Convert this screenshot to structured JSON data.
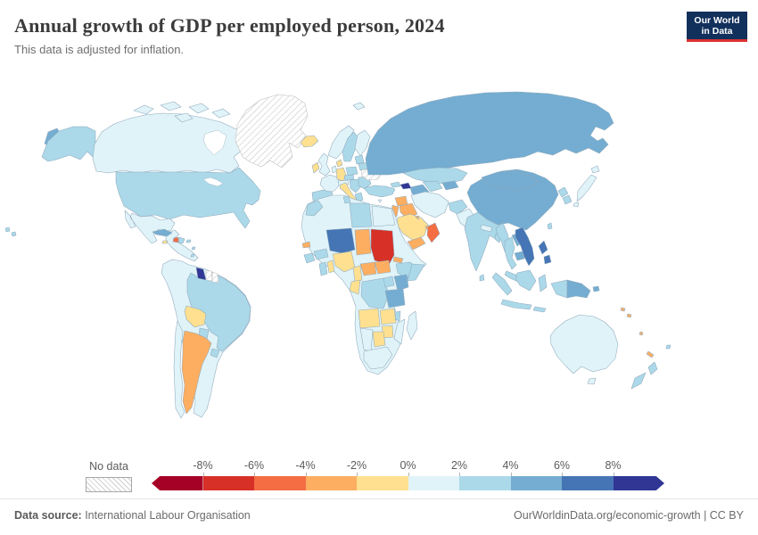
{
  "header": {
    "title": "Annual growth of GDP per employed person, 2024",
    "subtitle": "This data is adjusted for inflation.",
    "logo": {
      "line1": "Our World",
      "line2": "in Data",
      "bg_color": "#12305c",
      "accent_color": "#dc3231"
    }
  },
  "chart_data": {
    "type": "choropleth",
    "title": "Annual growth of GDP per employed person, 2024",
    "subtitle": "This data is adjusted for inflation.",
    "unit": "%",
    "legend": {
      "no_data_label": "No data",
      "tick_labels": [
        "-8%",
        "-6%",
        "-4%",
        "-2%",
        "0%",
        "2%",
        "4%",
        "6%",
        "8%"
      ],
      "bins": [
        {
          "id": "lt-8",
          "label": "< -8%",
          "color": "#a50026"
        },
        {
          "id": "-8--6",
          "label": "-8% to -6%",
          "color": "#d73027"
        },
        {
          "id": "-6--4",
          "label": "-6% to -4%",
          "color": "#f46d43"
        },
        {
          "id": "-4--2",
          "label": "-4% to -2%",
          "color": "#fdae61"
        },
        {
          "id": "-2-0",
          "label": "-2% to 0%",
          "color": "#fee090"
        },
        {
          "id": "0-2",
          "label": "0% to 2%",
          "color": "#e0f3f8"
        },
        {
          "id": "2-4",
          "label": "2% to 4%",
          "color": "#abd9e9"
        },
        {
          "id": "4-6",
          "label": "4% to 6%",
          "color": "#74add1"
        },
        {
          "id": "6-8",
          "label": "6% to 8%",
          "color": "#4575b4"
        },
        {
          "id": "gt8",
          "label": "> 8%",
          "color": "#313695"
        },
        {
          "id": "no-data",
          "label": "No data",
          "color": "hatch"
        }
      ]
    },
    "regions": {
      "chukotka": "4-6",
      "alaska": "2-4",
      "canada": "0-2",
      "arctic-islands": "0-2",
      "greenland": "no-data",
      "iceland": "-2-0",
      "usa": "2-4",
      "mexico": "0-2",
      "central-america": "0-2",
      "cuba": "4-6",
      "haiti": "-6--4",
      "dominican-republic": "2-4",
      "jamaica": "-2-0",
      "puerto-rico": "2-4",
      "hawaii": "2-4",
      "south-america-west": "0-2",
      "brazil": "2-4",
      "guyana": "gt8",
      "suriname": "no-data",
      "french-guiana": "no-data",
      "bolivia": "-2-0",
      "paraguay": "2-4",
      "uruguay": "2-4",
      "argentina": "-4--2",
      "chile": "0-2",
      "norway": "0-2",
      "sweden": "2-4",
      "finland": "0-2",
      "denmark": "-2-0",
      "uk": "0-2",
      "ireland": "-2-0",
      "france": "0-2",
      "iberia": "2-4",
      "germany": "-2-0",
      "benelux": "0-2",
      "poland": "2-4",
      "czech-slovakia": "2-4",
      "alpine": "0-2",
      "italy": "-2-0",
      "balkans": "2-4",
      "greece": "2-4",
      "romania-bulgaria": "2-4",
      "belarus": "2-4",
      "baltics": "2-4",
      "ukraine": "no-data",
      "turkey": "2-4",
      "cyprus": "0-2",
      "svalbard": "0-2",
      "russia": "4-6",
      "kazakhstan": "2-4",
      "turkmenistan": "4-6",
      "uzbekistan": "2-4",
      "kyrgyz-tajik": "4-6",
      "georgia": "2-4",
      "azerbaijan": "gt8",
      "syria": "-4--2",
      "iraq": "-4--2",
      "jordan-israel": "-4--2",
      "saudi-arabia": "-2-0",
      "kuwait": "-4--2",
      "yemen": "-4--2",
      "oman": "-6--4",
      "uae": "-4--2",
      "iran": "0-2",
      "afghanistan": "2-4",
      "pakistan": "0-2",
      "india": "2-4",
      "nepal": "0-2",
      "bangladesh": "2-4",
      "sri-lanka": "2-4",
      "china": "4-6",
      "mongolia": "4-6",
      "taiwan": "2-4",
      "north-korea": "2-4",
      "south-korea": "2-4",
      "japan": "0-2",
      "myanmar": "2-4",
      "thailand": "2-4",
      "laos": "4-6",
      "cambodia": "4-6",
      "vietnam": "6-8",
      "malaysia": "2-4",
      "sumatra": "2-4",
      "java": "2-4",
      "borneo": "2-4",
      "sulawesi": "2-4",
      "lesser-sunda": "2-4",
      "west-new-guinea": "2-4",
      "papua-new-guinea": "4-6",
      "philippines": "6-8",
      "australia": "0-2",
      "tasmania": "0-2",
      "new-zealand": "2-4",
      "new-caledonia": "-4--2",
      "fiji": "2-4",
      "solomon-islands": "-4--2",
      "vanuatu": "-4--2",
      "morocco": "2-4",
      "north-africa-base": "0-2",
      "tunisia": "2-4",
      "libya": "2-4",
      "egypt": "0-2",
      "senegal": "-4--2",
      "guinea": "2-4",
      "ghana": "2-4",
      "burkina-faso": "2-4",
      "niger": "6-8",
      "nigeria": "-2-0",
      "chad": "-4--2",
      "sudan": "-8--6",
      "eritrea": "-4--2",
      "ethiopia": "2-4",
      "somalia": "2-4",
      "south-sudan": "-4--2",
      "central-african-republic": "-4--2",
      "cameroon": "-2-0",
      "togo-benin": "-2-0",
      "gabon-congo": "-2-0",
      "drc": "2-4",
      "uganda": "2-4",
      "kenya": "4-6",
      "tanzania": "4-6",
      "angola": "-2-0",
      "zambia": "-2-0",
      "malawi": "2-4",
      "mozambique": "0-2",
      "zimbabwe": "-2-0",
      "botswana": "-2-0",
      "namibia": "0-2",
      "south-africa": "0-2",
      "madagascar": "0-2"
    }
  },
  "footer": {
    "source_label": "Data source:",
    "source_value": " International Labour Organisation",
    "right_text": "OurWorldinData.org/economic-growth | CC BY"
  }
}
